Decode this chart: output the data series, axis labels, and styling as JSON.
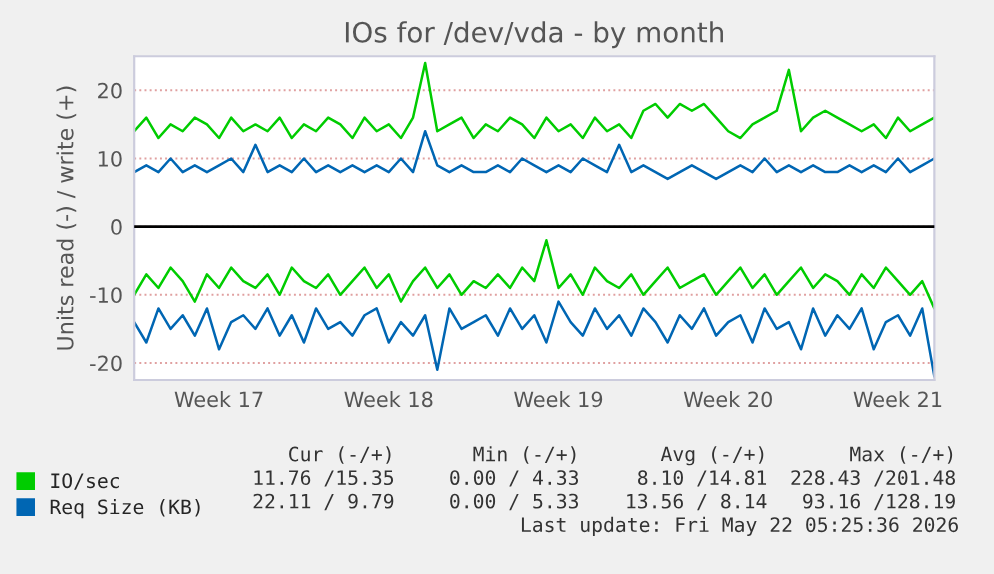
{
  "chart_data": {
    "type": "line",
    "title": "IOs for /dev/vda - by month",
    "ylabel": "Units read (-) / write (+)",
    "categories": [
      null,
      null,
      null,
      null,
      null,
      null,
      null,
      "Week 17",
      null,
      null,
      null,
      null,
      null,
      null,
      null,
      null,
      null,
      null,
      null,
      null,
      null,
      "Week 18",
      null,
      null,
      null,
      null,
      null,
      null,
      null,
      null,
      null,
      null,
      null,
      null,
      null,
      "Week 19",
      null,
      null,
      null,
      null,
      null,
      null,
      null,
      null,
      null,
      null,
      null,
      null,
      null,
      "Week 20",
      null,
      null,
      null,
      null,
      null,
      null,
      null,
      null,
      null,
      null,
      null,
      null,
      null,
      "Week 21",
      null,
      null,
      null
    ],
    "series": [
      {
        "name": "IO/sec",
        "color": "#00cc00",
        "values": [
          14,
          16,
          13,
          15,
          14,
          16,
          15,
          13,
          16,
          14,
          15,
          14,
          16,
          13,
          15,
          14,
          16,
          15,
          13,
          16,
          14,
          15,
          13,
          16,
          24,
          14,
          15,
          16,
          13,
          15,
          14,
          16,
          15,
          13,
          16,
          14,
          15,
          13,
          16,
          14,
          15,
          13,
          17,
          18,
          16,
          18,
          17,
          18,
          16,
          14,
          13,
          15,
          16,
          17,
          23,
          14,
          16,
          17,
          16,
          15,
          14,
          15,
          13,
          16,
          14,
          15,
          16
        ]
      },
      {
        "name": "Req Size (KB)",
        "color": "#0066b3",
        "values": [
          8,
          9,
          8,
          10,
          8,
          9,
          8,
          9,
          10,
          8,
          12,
          8,
          9,
          8,
          10,
          8,
          9,
          8,
          9,
          8,
          9,
          8,
          10,
          8,
          14,
          9,
          8,
          9,
          8,
          8,
          9,
          8,
          10,
          9,
          8,
          9,
          8,
          10,
          9,
          8,
          12,
          8,
          9,
          8,
          7,
          8,
          9,
          8,
          7,
          8,
          9,
          8,
          10,
          8,
          9,
          8,
          9,
          8,
          8,
          9,
          8,
          9,
          8,
          10,
          8,
          9,
          10
        ]
      },
      {
        "color": "#00cc00",
        "values": [
          -10,
          -7,
          -9,
          -6,
          -8,
          -11,
          -7,
          -9,
          -6,
          -8,
          -9,
          -7,
          -10,
          -6,
          -8,
          -9,
          -7,
          -10,
          -8,
          -6,
          -9,
          -7,
          -11,
          -8,
          -6,
          -9,
          -7,
          -10,
          -8,
          -9,
          -7,
          -9,
          -6,
          -8,
          -2,
          -9,
          -7,
          -10,
          -6,
          -8,
          -9,
          -7,
          -10,
          -8,
          -6,
          -9,
          -8,
          -7,
          -10,
          -8,
          -6,
          -9,
          -7,
          -10,
          -8,
          -6,
          -9,
          -7,
          -8,
          -10,
          -7,
          -9,
          -6,
          -8,
          -10,
          -8,
          -12
        ]
      },
      {
        "color": "#0066b3",
        "values": [
          -14,
          -17,
          -12,
          -15,
          -13,
          -16,
          -12,
          -18,
          -14,
          -13,
          -15,
          -12,
          -16,
          -13,
          -17,
          -12,
          -15,
          -14,
          -16,
          -13,
          -12,
          -17,
          -14,
          -16,
          -13,
          -21,
          -12,
          -15,
          -14,
          -13,
          -16,
          -12,
          -15,
          -13,
          -17,
          -11,
          -14,
          -16,
          -12,
          -15,
          -13,
          -16,
          -12,
          -14,
          -17,
          -13,
          -15,
          -12,
          -16,
          -14,
          -13,
          -17,
          -12,
          -15,
          -14,
          -18,
          -12,
          -16,
          -13,
          -15,
          -12,
          -18,
          -14,
          -13,
          -16,
          -12,
          -22
        ]
      }
    ],
    "ylim": [
      -22.5,
      25
    ],
    "yticks": [
      -20,
      -10,
      0,
      10,
      20
    ],
    "ref_lines": [
      {
        "axis": "y",
        "value": 0,
        "color": "#000000"
      }
    ],
    "grid": "y",
    "legend": "bottom left",
    "annotations": [
      "Cur (-/+)",
      "Min (-/+)",
      "Avg (-/+)",
      "Max (-/+)",
      "11.76 /15.35",
      "0.00 / 4.33",
      "8.10 /14.81",
      "228.43 /201.48",
      "22.11 / 9.79",
      "0.00 / 5.33",
      "13.56 / 8.14",
      "93.16 /128.19",
      "Last update: Fri May 22 05:25:36 2026"
    ]
  }
}
